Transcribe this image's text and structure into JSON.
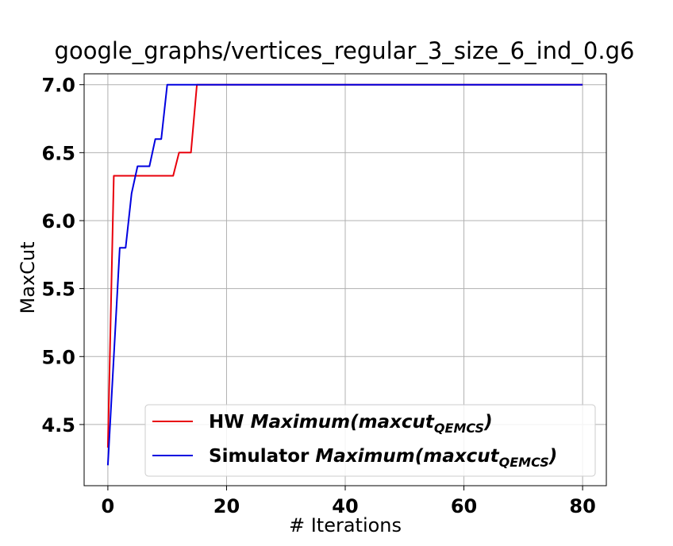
{
  "chart_data": {
    "type": "line",
    "title": "google_graphs/vertices_regular_3_size_6_ind_0.g6",
    "xlabel": "# Iterations",
    "ylabel": "MaxCut",
    "xlim": [
      -4,
      84
    ],
    "ylim": [
      4.05,
      7.08
    ],
    "xticks": [
      0,
      20,
      40,
      60,
      80
    ],
    "xtick_labels": [
      "0",
      "20",
      "40",
      "60",
      "80"
    ],
    "yticks": [
      4.5,
      5.0,
      5.5,
      6.0,
      6.5,
      7.0
    ],
    "ytick_labels": [
      "4.5",
      "5.0",
      "5.5",
      "6.0",
      "6.5",
      "7.0"
    ],
    "grid": true,
    "legend_position": "lower-right",
    "series": [
      {
        "name": "HW Maximum(maxcut_QEMCS)",
        "legend": {
          "prefix": "HW ",
          "func": "Maximum(maxcut",
          "sub": "QEMCS",
          "suffix": ")"
        },
        "color": "#e8000b",
        "x": [
          0,
          1,
          2,
          3,
          4,
          5,
          6,
          7,
          8,
          9,
          10,
          11,
          12,
          13,
          14,
          15,
          16,
          17,
          18,
          19,
          20,
          30,
          40,
          50,
          60,
          70,
          80
        ],
        "y": [
          4.33,
          6.33,
          6.33,
          6.33,
          6.33,
          6.33,
          6.33,
          6.33,
          6.33,
          6.33,
          6.33,
          6.33,
          6.5,
          6.5,
          6.5,
          7.0,
          7.0,
          7.0,
          7.0,
          7.0,
          7.0,
          7.0,
          7.0,
          7.0,
          7.0,
          7.0,
          7.0
        ]
      },
      {
        "name": "Simulator Maximum(maxcut_QEMCS)",
        "legend": {
          "prefix": "Simulator ",
          "func": "Maximum(maxcut",
          "sub": "QEMCS",
          "suffix": ")"
        },
        "color": "#0000e0",
        "x": [
          0,
          1,
          2,
          3,
          4,
          5,
          6,
          7,
          8,
          9,
          10,
          11,
          12,
          13,
          14,
          15,
          16,
          17,
          18,
          19,
          20,
          30,
          40,
          50,
          60,
          70,
          80
        ],
        "y": [
          4.2,
          5.0,
          5.8,
          5.8,
          6.2,
          6.4,
          6.4,
          6.4,
          6.6,
          6.6,
          7.0,
          7.0,
          7.0,
          7.0,
          7.0,
          7.0,
          7.0,
          7.0,
          7.0,
          7.0,
          7.0,
          7.0,
          7.0,
          7.0,
          7.0,
          7.0,
          7.0
        ]
      }
    ]
  }
}
